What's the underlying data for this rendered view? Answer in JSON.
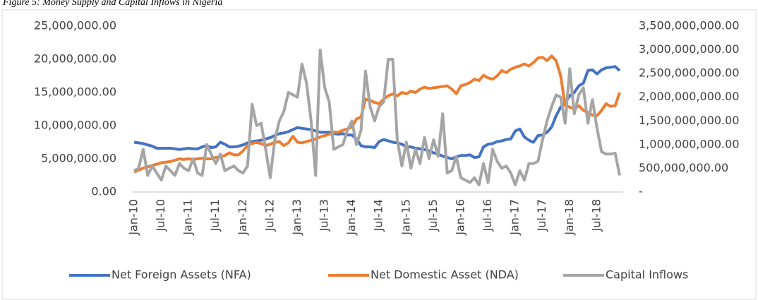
{
  "chart_data": {
    "type": "line",
    "title": "Figure 5: Money Supply and Capital Inflows in Nigeria",
    "categories": [
      "Jan-10",
      null,
      null,
      null,
      null,
      null,
      "Jul-10",
      null,
      null,
      null,
      null,
      null,
      "Jan-11",
      null,
      null,
      null,
      null,
      null,
      "Jul-11",
      null,
      null,
      null,
      null,
      null,
      "Jan-12",
      null,
      null,
      null,
      null,
      null,
      "Jul-12",
      null,
      null,
      null,
      null,
      null,
      "Jan-13",
      null,
      null,
      null,
      null,
      null,
      "Jul-13",
      null,
      null,
      null,
      null,
      null,
      "Jan-14",
      null,
      null,
      null,
      null,
      null,
      "Jul-14",
      null,
      null,
      null,
      null,
      null,
      "Jan-15",
      null,
      null,
      null,
      null,
      null,
      "Jul-15",
      null,
      null,
      null,
      null,
      null,
      "Jan-16",
      null,
      null,
      null,
      null,
      null,
      "Jul-16",
      null,
      null,
      null,
      null,
      null,
      "Jan-17",
      null,
      null,
      null,
      null,
      null,
      "Jul-17",
      null,
      null,
      null,
      null,
      null,
      "Jan-18",
      null,
      null,
      null,
      null,
      null,
      "Jul-18",
      null,
      null,
      null,
      null,
      null
    ],
    "series": [
      {
        "name": "Net Foreign Assets (NFA)",
        "color": "#4472c4",
        "values": [
          7500000,
          7400000,
          7300000,
          7100000,
          6900000,
          6600000,
          6600000,
          6600000,
          6600000,
          6500000,
          6400000,
          6500000,
          6600000,
          6500000,
          6500000,
          6800000,
          7000000,
          6700000,
          6800000,
          7500000,
          7200000,
          6800000,
          6800000,
          6900000,
          7100000,
          7400000,
          7600000,
          7700000,
          7800000,
          8000000,
          8200000,
          8500000,
          8800000,
          8900000,
          9100000,
          9400000,
          9700000,
          9600000,
          9500000,
          9400000,
          9200000,
          9000000,
          9000000,
          9000000,
          8800000,
          8700000,
          8800000,
          8600000,
          8600000,
          8000000,
          7000000,
          6800000,
          6800000,
          6700000,
          7600000,
          7900000,
          7700000,
          7500000,
          7400000,
          7200000,
          6800000,
          6800000,
          6600000,
          6500000,
          6400000,
          6200000,
          5900000,
          5700000,
          5400000,
          5200000,
          5000000,
          5300000,
          5500000,
          5500000,
          5600000,
          5200000,
          5300000,
          6800000,
          7200000,
          7300000,
          7600000,
          7700000,
          7900000,
          8000000,
          9200000,
          9500000,
          8300000,
          7800000,
          7500000,
          8500000,
          8600000,
          9000000,
          9800000,
          11500000,
          12800000,
          13500000,
          14500000,
          15000000,
          16000000,
          16400000,
          18300000,
          18400000,
          17800000,
          18400000,
          18700000,
          18800000,
          18900000,
          18300000
        ]
      },
      {
        "name": "Net Domestic Asset (NDA)",
        "color": "#ed7d31",
        "values": [
          3000000,
          3300000,
          3600000,
          3800000,
          4000000,
          4200000,
          4400000,
          4500000,
          4600000,
          4800000,
          5000000,
          4900000,
          5000000,
          4900000,
          5000000,
          5100000,
          5000000,
          5000000,
          5200000,
          5300000,
          5500000,
          5900000,
          5600000,
          5600000,
          6200000,
          7000000,
          7300000,
          7500000,
          7300000,
          7000000,
          7200000,
          7500000,
          7600000,
          7000000,
          7400000,
          8400000,
          7500000,
          7400000,
          7600000,
          7800000,
          8000000,
          8300000,
          8500000,
          8700000,
          9000000,
          9000000,
          9300000,
          9500000,
          9800000,
          11000000,
          11300000,
          14000000,
          13800000,
          13500000,
          13300000,
          14000000,
          14500000,
          14800000,
          14500000,
          15000000,
          14800000,
          15200000,
          15000000,
          15500000,
          15800000,
          15600000,
          15700000,
          15800000,
          15900000,
          16000000,
          15500000,
          14800000,
          16000000,
          16200000,
          16500000,
          17000000,
          16800000,
          17600000,
          17200000,
          17000000,
          17500000,
          18300000,
          18000000,
          18500000,
          18800000,
          19000000,
          19300000,
          19000000,
          19500000,
          20200000,
          20300000,
          19800000,
          20500000,
          19800000,
          17500000,
          13000000,
          12800000,
          12500000,
          13000000,
          12300000,
          12000000,
          11600000,
          11500000,
          12300000,
          13300000,
          12900000,
          13000000,
          15000000
        ]
      },
      {
        "name": "Capital Inflows",
        "color": "#a5a5a5",
        "axis": "y2",
        "values": [
          450000000,
          500000000,
          900000000,
          350000000,
          550000000,
          400000000,
          250000000,
          550000000,
          450000000,
          350000000,
          600000000,
          500000000,
          450000000,
          700000000,
          400000000,
          350000000,
          1000000000,
          800000000,
          600000000,
          800000000,
          450000000,
          500000000,
          550000000,
          450000000,
          400000000,
          550000000,
          1850000000,
          1400000000,
          1450000000,
          900000000,
          300000000,
          1100000000,
          1500000000,
          1700000000,
          2100000000,
          2050000000,
          2000000000,
          2700000000,
          2300000000,
          1500000000,
          350000000,
          3000000000,
          2200000000,
          1900000000,
          900000000,
          950000000,
          1000000000,
          1300000000,
          1500000000,
          1000000000,
          1300000000,
          2550000000,
          1800000000,
          1500000000,
          1800000000,
          1900000000,
          2800000000,
          2800000000,
          1100000000,
          550000000,
          1050000000,
          500000000,
          900000000,
          600000000,
          1150000000,
          700000000,
          1100000000,
          750000000,
          1650000000,
          400000000,
          450000000,
          750000000,
          300000000,
          250000000,
          200000000,
          300000000,
          150000000,
          600000000,
          200000000,
          900000000,
          650000000,
          500000000,
          550000000,
          400000000,
          150000000,
          450000000,
          250000000,
          600000000,
          600000000,
          650000000,
          1100000000,
          1500000000,
          1800000000,
          2050000000,
          2000000000,
          1450000000,
          2600000000,
          1650000000,
          2050000000,
          2200000000,
          1450000000,
          1950000000,
          1350000000,
          850000000,
          800000000,
          800000000,
          820000000,
          350000000
        ]
      }
    ],
    "ylim": [
      0,
      25000000
    ],
    "yticks": [
      {
        "value": 0,
        "label": "0.00"
      },
      {
        "value": 5000000,
        "label": "5,000,000.00"
      },
      {
        "value": 10000000,
        "label": "10,000,000.00"
      },
      {
        "value": 15000000,
        "label": "15,000,000.00"
      },
      {
        "value": 20000000,
        "label": "20,000,000.00"
      },
      {
        "value": 25000000,
        "label": "25,000,000.00"
      }
    ],
    "y2lim": [
      0,
      3500000000
    ],
    "y2ticks": [
      {
        "value": 0,
        "label": "-"
      },
      {
        "value": 500000000,
        "label": "500,000,000.00"
      },
      {
        "value": 1000000000,
        "label": "1,000,000,000.00"
      },
      {
        "value": 1500000000,
        "label": "1,500,000,000.00"
      },
      {
        "value": 2000000000,
        "label": "2,000,000,000.00"
      },
      {
        "value": 2500000000,
        "label": "2,500,000,000.00"
      },
      {
        "value": 3000000000,
        "label": "3,000,000,000.00"
      },
      {
        "value": 3500000000,
        "label": "3,500,000,000.00"
      }
    ],
    "grid": false,
    "legend": "bottom"
  }
}
